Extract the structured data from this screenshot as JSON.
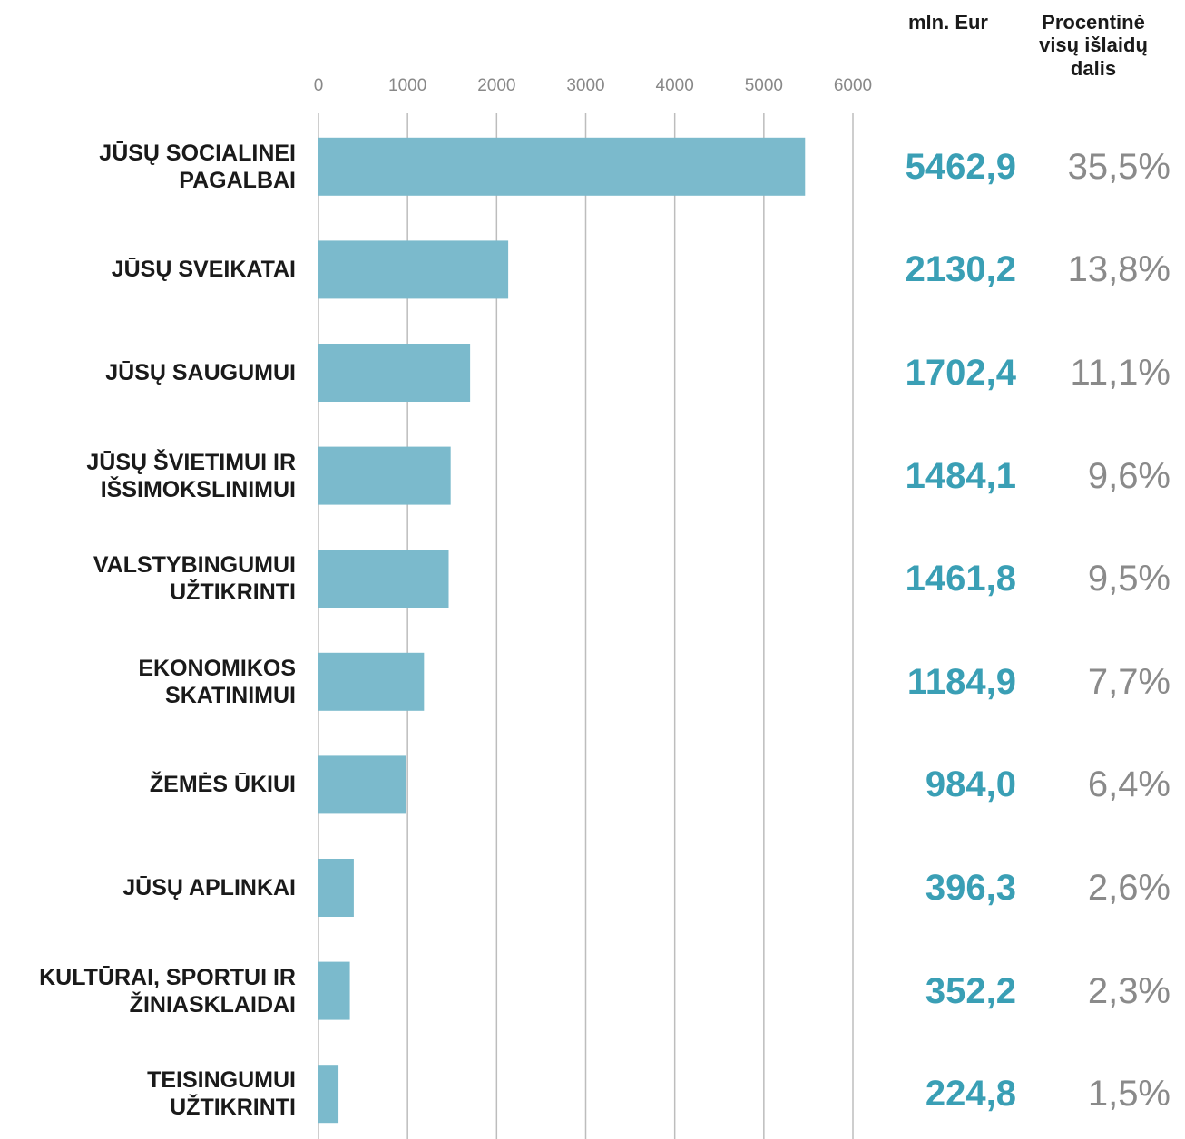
{
  "chart_data": {
    "type": "bar",
    "orientation": "horizontal",
    "categories": [
      "JŪSŲ SOCIALINEI\nPAGALBAI",
      "JŪSŲ SVEIKATAI",
      "JŪSŲ SAUGUMUI",
      "JŪSŲ ŠVIETIMUI IR\nIŠSIMOKSLINIMUI",
      "VALSTYBINGUMUI\nUŽTIKRINTI",
      "EKONOMIKOS\nSKATINIMUI",
      "ŽEMĖS ŪKIUI",
      "JŪSŲ APLINKAI",
      "KULTŪRAI, SPORTUI IR\nŽINIASKLAIDAI",
      "TEISINGUMUI\nUŽTIKRINTI"
    ],
    "series": [
      {
        "name": "mln. Eur",
        "color": "#7bbacc",
        "values": [
          5462.9,
          2130.2,
          1702.4,
          1484.1,
          1461.8,
          1184.9,
          984.0,
          396.3,
          352.2,
          224.8
        ],
        "value_labels": [
          "5462,9",
          "2130,2",
          "1702,4",
          "1484,1",
          "1461,8",
          "1184,9",
          "984,0",
          "396,3",
          "352,2",
          "224,8"
        ]
      },
      {
        "name": "Procentinė\nvisų išlaidų\ndalis",
        "color": "#8a8a8a",
        "values": [
          35.5,
          13.8,
          11.1,
          9.6,
          9.5,
          7.7,
          6.4,
          2.6,
          2.3,
          1.5
        ],
        "value_labels": [
          "35,5%",
          "13,8%",
          "11,1%",
          "9,6%",
          "9,5%",
          "7,7%",
          "6,4%",
          "2,6%",
          "2,3%",
          "1,5%"
        ]
      }
    ],
    "xlim": [
      0,
      6000
    ],
    "xticks": [
      0,
      1000,
      2000,
      3000,
      4000,
      5000,
      6000
    ],
    "grid": true,
    "value_label_color": "#3a9fb5"
  }
}
